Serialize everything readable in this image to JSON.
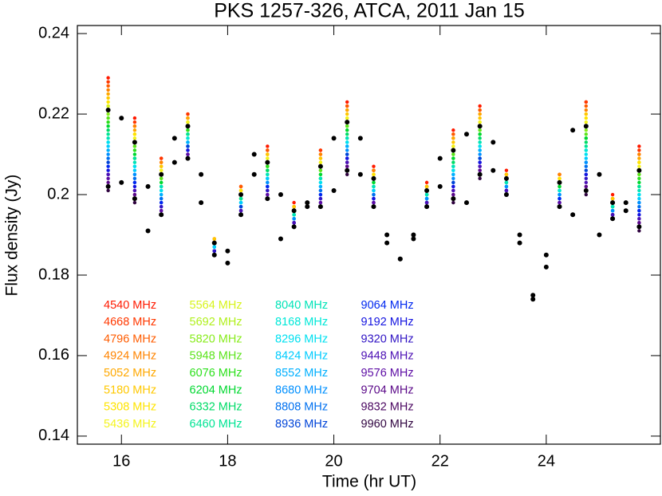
{
  "chart_data": {
    "type": "scatter",
    "title": "PKS 1257-326, ATCA, 2011 Jan 15",
    "x_label": "Time (hr UT)",
    "y_label": "Flux density (Jy)",
    "xlim": [
      15.17,
      26.15
    ],
    "ylim": [
      0.138,
      0.242
    ],
    "xticks": [
      16,
      18,
      20,
      22,
      24
    ],
    "yticks": [
      0.14,
      0.16,
      0.18,
      0.2,
      0.22,
      0.24
    ],
    "x": [
      15.75,
      16.25,
      16.75,
      17.25,
      17.75,
      18.25,
      18.75,
      19.25,
      19.75,
      20.25,
      20.75,
      21.25,
      21.75,
      22.25,
      22.75,
      23.25,
      23.75,
      24.25,
      24.75,
      25.25,
      25.75
    ],
    "series": [
      {
        "name": "4540 MHz",
        "color": "#ff1a00",
        "values": [
          0.229,
          0.219,
          0.209,
          0.22,
          0.189,
          0.202,
          0.212,
          0.198,
          0.211,
          0.223,
          0.207,
          0.184,
          0.203,
          0.216,
          0.222,
          0.206,
          0.175,
          0.205,
          0.223,
          0.2,
          0.212
        ]
      },
      {
        "name": "4668 MHz",
        "color": "#ff3800",
        "values": [
          0.228,
          0.218,
          0.209,
          0.22,
          0.189,
          0.202,
          0.211,
          0.197,
          0.211,
          0.222,
          0.206,
          0.184,
          0.202,
          0.215,
          0.221,
          0.205,
          0.175,
          0.205,
          0.223,
          0.199,
          0.211
        ]
      },
      {
        "name": "4796 MHz",
        "color": "#ff5c00",
        "values": [
          0.227,
          0.217,
          0.208,
          0.219,
          0.189,
          0.202,
          0.211,
          0.197,
          0.21,
          0.222,
          0.206,
          0.184,
          0.202,
          0.215,
          0.221,
          0.205,
          0.175,
          0.205,
          0.222,
          0.199,
          0.21
        ]
      },
      {
        "name": "4924 MHz",
        "color": "#ff8400",
        "values": [
          0.226,
          0.217,
          0.208,
          0.219,
          0.189,
          0.201,
          0.21,
          0.197,
          0.21,
          0.221,
          0.206,
          0.184,
          0.202,
          0.214,
          0.22,
          0.205,
          0.175,
          0.205,
          0.221,
          0.199,
          0.21
        ]
      },
      {
        "name": "5052 MHz",
        "color": "#ffa800",
        "values": [
          0.225,
          0.216,
          0.207,
          0.219,
          0.189,
          0.201,
          0.21,
          0.197,
          0.209,
          0.221,
          0.205,
          0.184,
          0.202,
          0.214,
          0.22,
          0.205,
          0.175,
          0.204,
          0.22,
          0.199,
          0.209
        ]
      },
      {
        "name": "5180 MHz",
        "color": "#ffc800",
        "values": [
          0.224,
          0.215,
          0.207,
          0.218,
          0.189,
          0.201,
          0.21,
          0.197,
          0.209,
          0.22,
          0.205,
          0.184,
          0.202,
          0.213,
          0.219,
          0.205,
          0.175,
          0.204,
          0.22,
          0.199,
          0.208
        ]
      },
      {
        "name": "5308 MHz",
        "color": "#ffe400",
        "values": [
          0.223,
          0.215,
          0.206,
          0.218,
          0.188,
          0.201,
          0.209,
          0.196,
          0.208,
          0.219,
          0.205,
          0.184,
          0.201,
          0.212,
          0.218,
          0.204,
          0.175,
          0.204,
          0.219,
          0.198,
          0.208
        ]
      },
      {
        "name": "5436 MHz",
        "color": "#f4f41c",
        "values": [
          0.222,
          0.214,
          0.206,
          0.218,
          0.188,
          0.2,
          0.209,
          0.196,
          0.208,
          0.219,
          0.204,
          0.184,
          0.201,
          0.212,
          0.218,
          0.204,
          0.175,
          0.203,
          0.218,
          0.198,
          0.207
        ]
      },
      {
        "name": "5564 MHz",
        "color": "#d8f41c",
        "values": [
          0.222,
          0.213,
          0.205,
          0.217,
          0.188,
          0.2,
          0.208,
          0.196,
          0.207,
          0.218,
          0.204,
          0.184,
          0.201,
          0.211,
          0.217,
          0.204,
          0.175,
          0.203,
          0.217,
          0.198,
          0.206
        ]
      },
      {
        "name": "5692 MHz",
        "color": "#b0f01c",
        "values": [
          0.221,
          0.213,
          0.205,
          0.217,
          0.188,
          0.2,
          0.208,
          0.196,
          0.207,
          0.218,
          0.204,
          0.184,
          0.201,
          0.211,
          0.217,
          0.204,
          0.175,
          0.203,
          0.217,
          0.198,
          0.206
        ]
      },
      {
        "name": "5820 MHz",
        "color": "#88ec1c",
        "values": [
          0.22,
          0.212,
          0.204,
          0.216,
          0.188,
          0.2,
          0.207,
          0.196,
          0.206,
          0.217,
          0.204,
          0.184,
          0.201,
          0.21,
          0.216,
          0.204,
          0.175,
          0.203,
          0.216,
          0.198,
          0.205
        ]
      },
      {
        "name": "5948 MHz",
        "color": "#5ce41c",
        "values": [
          0.219,
          0.212,
          0.204,
          0.216,
          0.188,
          0.199,
          0.207,
          0.196,
          0.206,
          0.217,
          0.203,
          0.184,
          0.201,
          0.21,
          0.216,
          0.204,
          0.175,
          0.202,
          0.215,
          0.198,
          0.205
        ]
      },
      {
        "name": "6076 MHz",
        "color": "#2ce01c",
        "values": [
          0.218,
          0.211,
          0.203,
          0.216,
          0.188,
          0.199,
          0.207,
          0.195,
          0.205,
          0.216,
          0.203,
          0.184,
          0.2,
          0.209,
          0.215,
          0.203,
          0.175,
          0.202,
          0.214,
          0.197,
          0.204
        ]
      },
      {
        "name": "6204 MHz",
        "color": "#00d830",
        "values": [
          0.217,
          0.21,
          0.203,
          0.215,
          0.187,
          0.199,
          0.206,
          0.195,
          0.205,
          0.216,
          0.203,
          0.184,
          0.2,
          0.209,
          0.215,
          0.203,
          0.175,
          0.202,
          0.214,
          0.197,
          0.203
        ]
      },
      {
        "name": "6332 MHz",
        "color": "#00dc68",
        "values": [
          0.216,
          0.209,
          0.202,
          0.215,
          0.187,
          0.199,
          0.206,
          0.195,
          0.204,
          0.215,
          0.202,
          0.184,
          0.2,
          0.208,
          0.214,
          0.203,
          0.175,
          0.201,
          0.213,
          0.197,
          0.202
        ]
      },
      {
        "name": "6460 MHz",
        "color": "#00e494",
        "values": [
          0.215,
          0.209,
          0.202,
          0.215,
          0.187,
          0.199,
          0.205,
          0.195,
          0.204,
          0.214,
          0.202,
          0.184,
          0.2,
          0.207,
          0.213,
          0.203,
          0.175,
          0.201,
          0.212,
          0.197,
          0.202
        ]
      },
      {
        "name": "8040 MHz",
        "color": "#00e4b8",
        "values": [
          0.214,
          0.208,
          0.202,
          0.214,
          0.187,
          0.198,
          0.205,
          0.195,
          0.204,
          0.214,
          0.202,
          0.184,
          0.2,
          0.207,
          0.213,
          0.203,
          0.175,
          0.201,
          0.211,
          0.197,
          0.201
        ]
      },
      {
        "name": "8168 MHz",
        "color": "#00e8d8",
        "values": [
          0.213,
          0.207,
          0.201,
          0.214,
          0.187,
          0.198,
          0.204,
          0.194,
          0.203,
          0.213,
          0.201,
          0.184,
          0.199,
          0.206,
          0.212,
          0.202,
          0.175,
          0.201,
          0.211,
          0.196,
          0.2
        ]
      },
      {
        "name": "8296 MHz",
        "color": "#00e0f0",
        "values": [
          0.213,
          0.207,
          0.201,
          0.213,
          0.187,
          0.198,
          0.204,
          0.194,
          0.203,
          0.213,
          0.201,
          0.184,
          0.199,
          0.206,
          0.212,
          0.202,
          0.175,
          0.2,
          0.21,
          0.196,
          0.2
        ]
      },
      {
        "name": "8424 MHz",
        "color": "#00ccff",
        "values": [
          0.212,
          0.206,
          0.2,
          0.213,
          0.187,
          0.198,
          0.204,
          0.194,
          0.202,
          0.212,
          0.201,
          0.184,
          0.199,
          0.205,
          0.211,
          0.202,
          0.175,
          0.2,
          0.209,
          0.196,
          0.199
        ]
      },
      {
        "name": "8552 MHz",
        "color": "#00b0ff",
        "values": [
          0.211,
          0.205,
          0.2,
          0.213,
          0.186,
          0.197,
          0.203,
          0.194,
          0.202,
          0.212,
          0.2,
          0.184,
          0.199,
          0.205,
          0.211,
          0.202,
          0.174,
          0.2,
          0.208,
          0.196,
          0.198
        ]
      },
      {
        "name": "8680 MHz",
        "color": "#0090ff",
        "values": [
          0.21,
          0.205,
          0.199,
          0.212,
          0.186,
          0.197,
          0.203,
          0.194,
          0.201,
          0.211,
          0.2,
          0.184,
          0.199,
          0.204,
          0.21,
          0.202,
          0.174,
          0.2,
          0.208,
          0.196,
          0.198
        ]
      },
      {
        "name": "8808 MHz",
        "color": "#0070f0",
        "values": [
          0.209,
          0.204,
          0.199,
          0.212,
          0.186,
          0.197,
          0.202,
          0.193,
          0.201,
          0.21,
          0.2,
          0.184,
          0.198,
          0.203,
          0.209,
          0.201,
          0.174,
          0.199,
          0.207,
          0.195,
          0.197
        ]
      },
      {
        "name": "8936 MHz",
        "color": "#0044d8",
        "values": [
          0.208,
          0.203,
          0.198,
          0.212,
          0.186,
          0.197,
          0.202,
          0.193,
          0.2,
          0.21,
          0.199,
          0.184,
          0.198,
          0.203,
          0.209,
          0.201,
          0.174,
          0.199,
          0.206,
          0.195,
          0.196
        ]
      },
      {
        "name": "9064 MHz",
        "color": "#0028f0",
        "values": [
          0.207,
          0.203,
          0.198,
          0.211,
          0.186,
          0.196,
          0.202,
          0.193,
          0.2,
          0.209,
          0.199,
          0.184,
          0.198,
          0.202,
          0.208,
          0.201,
          0.174,
          0.199,
          0.205,
          0.195,
          0.196
        ]
      },
      {
        "name": "9192 MHz",
        "color": "#1414e0",
        "values": [
          0.206,
          0.202,
          0.197,
          0.211,
          0.186,
          0.196,
          0.201,
          0.193,
          0.199,
          0.209,
          0.199,
          0.184,
          0.198,
          0.202,
          0.208,
          0.201,
          0.174,
          0.198,
          0.205,
          0.195,
          0.195
        ]
      },
      {
        "name": "9320 MHz",
        "color": "#3014c4",
        "values": [
          0.205,
          0.201,
          0.197,
          0.21,
          0.186,
          0.196,
          0.201,
          0.193,
          0.199,
          0.208,
          0.198,
          0.184,
          0.198,
          0.201,
          0.207,
          0.201,
          0.174,
          0.198,
          0.204,
          0.195,
          0.194
        ]
      },
      {
        "name": "9448 MHz",
        "color": "#4c10b4",
        "values": [
          0.205,
          0.201,
          0.196,
          0.21,
          0.185,
          0.196,
          0.2,
          0.193,
          0.198,
          0.208,
          0.198,
          0.184,
          0.198,
          0.201,
          0.207,
          0.201,
          0.174,
          0.198,
          0.203,
          0.195,
          0.194
        ]
      },
      {
        "name": "9576 MHz",
        "color": "#5c0ca4",
        "values": [
          0.204,
          0.2,
          0.196,
          0.21,
          0.185,
          0.195,
          0.2,
          0.192,
          0.198,
          0.207,
          0.198,
          0.184,
          0.197,
          0.2,
          0.206,
          0.2,
          0.174,
          0.198,
          0.202,
          0.194,
          0.193
        ]
      },
      {
        "name": "9704 MHz",
        "color": "#5a0888",
        "values": [
          0.203,
          0.2,
          0.195,
          0.209,
          0.185,
          0.195,
          0.199,
          0.192,
          0.197,
          0.207,
          0.197,
          0.184,
          0.197,
          0.2,
          0.206,
          0.2,
          0.174,
          0.197,
          0.202,
          0.194,
          0.193
        ]
      },
      {
        "name": "9832 MHz",
        "color": "#4a0660",
        "values": [
          0.202,
          0.199,
          0.195,
          0.209,
          0.185,
          0.195,
          0.199,
          0.192,
          0.197,
          0.206,
          0.197,
          0.184,
          0.197,
          0.199,
          0.205,
          0.2,
          0.174,
          0.197,
          0.201,
          0.194,
          0.192
        ]
      },
      {
        "name": "9960 MHz",
        "color": "#300440",
        "values": [
          0.201,
          0.198,
          0.195,
          0.209,
          0.185,
          0.195,
          0.199,
          0.192,
          0.197,
          0.205,
          0.197,
          0.184,
          0.197,
          0.198,
          0.204,
          0.2,
          0.174,
          0.197,
          0.2,
          0.194,
          0.191
        ]
      }
    ],
    "mean_x": [
      15.75,
      16.0,
      16.25,
      16.5,
      16.75,
      17.0,
      17.25,
      17.5,
      17.75,
      18.0,
      18.25,
      18.5,
      18.75,
      19.0,
      19.25,
      19.5,
      19.75,
      20.0,
      20.25,
      20.5,
      20.75,
      21.0,
      21.25,
      21.5,
      21.75,
      22.0,
      22.25,
      22.5,
      22.75,
      23.0,
      23.25,
      23.5,
      23.75,
      24.0,
      24.25,
      24.5,
      24.75,
      25.0,
      25.25,
      25.5,
      25.75
    ],
    "means": [
      {
        "color": "#000000",
        "values": [
          0.221,
          0.219,
          0.213,
          0.202,
          0.205,
          0.214,
          0.217,
          0.205,
          0.188,
          0.186,
          0.2,
          0.21,
          0.208,
          0.2,
          0.196,
          0.198,
          0.207,
          0.214,
          0.218,
          0.214,
          0.204,
          0.19,
          0.184,
          0.19,
          0.201,
          0.209,
          0.211,
          0.215,
          0.217,
          0.213,
          0.204,
          0.19,
          0.175,
          0.185,
          0.203,
          0.216,
          0.217,
          0.205,
          0.198,
          0.198,
          0.206
        ]
      },
      {
        "color": "#000000",
        "values": [
          0.202,
          0.203,
          0.199,
          0.191,
          0.195,
          0.208,
          0.209,
          0.198,
          0.185,
          0.183,
          0.195,
          0.205,
          0.199,
          0.189,
          0.192,
          0.197,
          0.197,
          0.201,
          0.206,
          0.205,
          0.197,
          0.188,
          0.184,
          0.189,
          0.197,
          0.202,
          0.199,
          0.198,
          0.205,
          0.206,
          0.2,
          0.188,
          0.174,
          0.182,
          0.197,
          0.195,
          0.201,
          0.19,
          0.194,
          0.196,
          0.192
        ]
      }
    ]
  }
}
